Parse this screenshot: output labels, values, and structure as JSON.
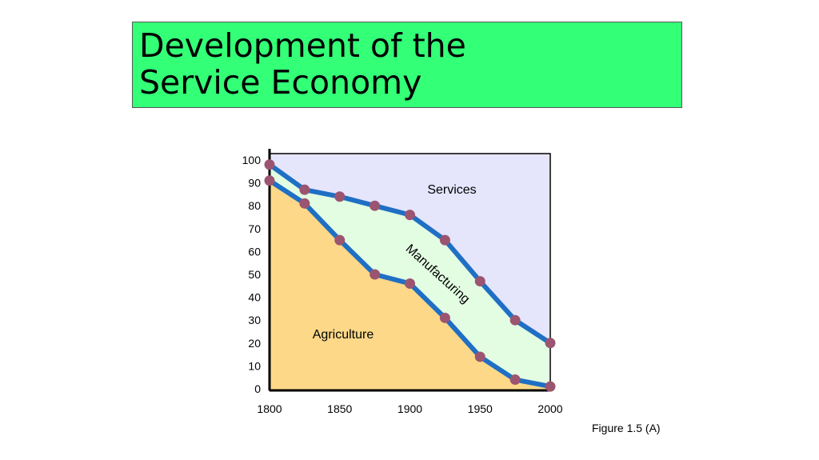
{
  "slide": {
    "title_line_1": "Development of the",
    "title_line_2": "Service Economy",
    "title_bg": "#33ff77",
    "caption": "Figure 1.5 (A)"
  },
  "chart_data": {
    "type": "area",
    "x": [
      1800,
      1825,
      1850,
      1875,
      1900,
      1925,
      1950,
      1975,
      2000
    ],
    "xticks": [
      1800,
      1850,
      1900,
      1950,
      2000
    ],
    "yticks": [
      0,
      10,
      20,
      30,
      40,
      50,
      60,
      70,
      80,
      90,
      100
    ],
    "xlim": [
      1800,
      2000
    ],
    "ylim": [
      0,
      100
    ],
    "series": [
      {
        "name": "Agriculture",
        "values": [
          91,
          81,
          65,
          50,
          46,
          31,
          14,
          4,
          1
        ],
        "fill": "#fdd888"
      },
      {
        "name": "Manufacturing",
        "values": [
          98,
          87,
          84,
          80,
          76,
          65,
          47,
          30,
          20
        ],
        "fill": "#e2fde2"
      },
      {
        "name": "Services",
        "fill": "#e5e5fc"
      }
    ],
    "line_color": "#1f6fc4",
    "marker_color": "#9b5570",
    "grid": false
  }
}
